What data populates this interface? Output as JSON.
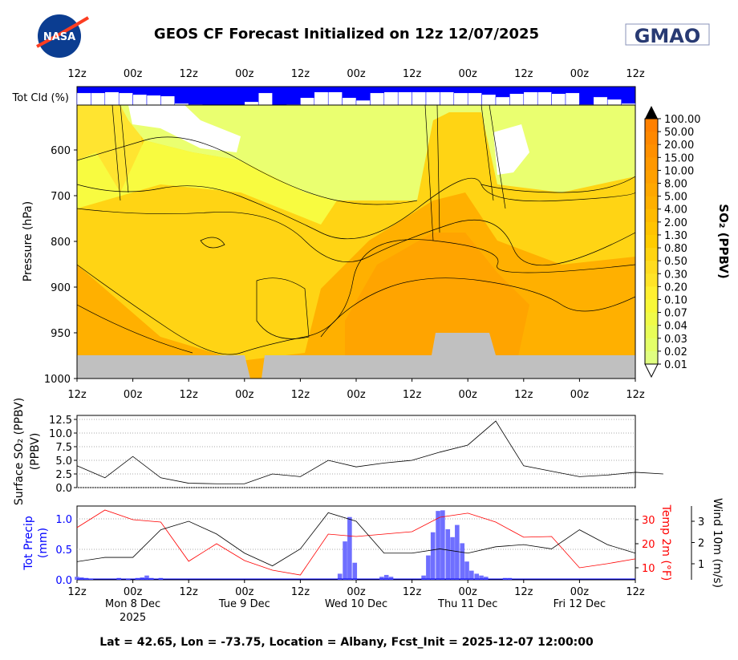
{
  "title": "GEOS CF Forecast Initialized on 12z 12/07/2025",
  "logos": {
    "left": "NASA",
    "right": "GMAO"
  },
  "footer": "Lat = 42.65, Lon = -73.75, Location = Albany, Fcst_Init = 2025-12-07 12:00:00",
  "colors": {
    "precip": "#0000ff",
    "temp": "#ff0000",
    "wind": "#000000",
    "cloud_bg": "#0000ff",
    "terrain": "#c0c0c0"
  },
  "time_ticks": [
    "12z",
    "00z",
    "12z",
    "00z",
    "12z",
    "00z",
    "12z",
    "00z",
    "12z",
    "00z",
    "12z"
  ],
  "date_labels": [
    {
      "hour": 12,
      "text": "Mon 8 Dec"
    },
    {
      "hour": 36,
      "text": "Tue 9 Dec"
    },
    {
      "hour": 60,
      "text": "Wed 10 Dec"
    },
    {
      "hour": 84,
      "text": "Thu 11 Dec"
    },
    {
      "hour": 108,
      "text": "Fri 12 Dec"
    }
  ],
  "year_label": "2025",
  "chart_data": [
    {
      "type": "bar",
      "ylabel": "Tot Cld (%)",
      "x_hours_step": 3,
      "values": [
        34,
        34,
        29,
        34,
        43,
        47,
        51,
        91,
        96,
        100,
        100,
        100,
        82,
        34,
        100,
        96,
        60,
        29,
        29,
        60,
        74,
        34,
        29,
        29,
        29,
        29,
        29,
        34,
        34,
        43,
        56,
        38,
        29,
        29,
        38,
        34,
        96,
        56,
        69,
        91
      ]
    },
    {
      "type": "heatmap",
      "ylabel": "Pressure (hPa)",
      "yticks": [
        "600",
        "700",
        "800",
        "900",
        "950",
        "1000"
      ],
      "colorbar_label": "SO₂ (PPBV)",
      "colorbar_levels": [
        "100.00",
        "50.00",
        "20.00",
        "15.00",
        "10.00",
        "8.00",
        "5.00",
        "4.00",
        "2.00",
        "1.30",
        "0.80",
        "0.50",
        "0.30",
        "0.20",
        "0.10",
        "0.07",
        "0.04",
        "0.03",
        "0.02",
        "0.01"
      ],
      "colorbar_colors": [
        "#ff8000",
        "#ff8800",
        "#ff9000",
        "#ff9800",
        "#ffa000",
        "#ffa800",
        "#ffb000",
        "#ffbb00",
        "#ffc400",
        "#ffcc00",
        "#ffd410",
        "#ffdc20",
        "#ffe428",
        "#fff030",
        "#f8f838",
        "#f0fb48",
        "#e8fd58",
        "#e4ff68",
        "#e0ff80"
      ]
    },
    {
      "type": "line",
      "ylabel": "Surface SO₂ (PPBV)",
      "yticks": [
        "0.0",
        "2.5",
        "5.0",
        "7.5",
        "10.0",
        "12.5"
      ],
      "ylim": [
        0,
        13.5
      ],
      "x_hours_step": 6,
      "values": [
        4.0,
        1.8,
        5.7,
        1.8,
        0.8,
        0.7,
        0.7,
        2.5,
        2.0,
        5.0,
        3.8,
        4.5,
        5.0,
        6.5,
        7.8,
        12.2,
        4.0,
        3.0,
        2.0,
        2.3,
        2.8,
        2.5
      ]
    },
    {
      "type": "bar+line",
      "precip": {
        "ylabel": "Tot Precip (mm)",
        "yticks": [
          "0.0",
          "0.5",
          "1.0"
        ],
        "ylim": [
          0,
          1.2
        ],
        "bars": [
          [
            0,
            0.05
          ],
          [
            1,
            0.04
          ],
          [
            2,
            0.03
          ],
          [
            3,
            0.02
          ],
          [
            9,
            0.03
          ],
          [
            11,
            0.02
          ],
          [
            13,
            0.03
          ],
          [
            14,
            0.04
          ],
          [
            15,
            0.07
          ],
          [
            16,
            0.03
          ],
          [
            18,
            0.03
          ],
          [
            56.5,
            0.1
          ],
          [
            57.6,
            0.63
          ],
          [
            58.6,
            1.03
          ],
          [
            59.7,
            0.28
          ],
          [
            65.5,
            0.05
          ],
          [
            66.5,
            0.08
          ],
          [
            67.5,
            0.05
          ],
          [
            74.5,
            0.07
          ],
          [
            75.5,
            0.4
          ],
          [
            76.5,
            0.78
          ],
          [
            77.6,
            1.13
          ],
          [
            78.6,
            1.14
          ],
          [
            79.7,
            0.83
          ],
          [
            80.7,
            0.7
          ],
          [
            81.7,
            0.9
          ],
          [
            82.8,
            0.6
          ],
          [
            83.8,
            0.3
          ],
          [
            84.8,
            0.15
          ],
          [
            85.9,
            0.1
          ],
          [
            86.9,
            0.07
          ],
          [
            87.9,
            0.05
          ],
          [
            92,
            0.03
          ],
          [
            93,
            0.03
          ]
        ]
      },
      "temp": {
        "ylabel": "Temp 2m (°F)",
        "yticks": [
          "10",
          "20",
          "30"
        ],
        "x_hours_step": 6,
        "values": [
          26.7,
          34,
          30,
          29,
          12.7,
          20,
          13,
          9,
          7,
          24,
          23,
          24,
          25,
          31,
          32.7,
          29,
          22.7,
          23,
          10,
          11.7,
          13.7
        ]
      },
      "wind": {
        "ylabel": "Wind 10m (m/s)",
        "yticks": [
          "1",
          "2",
          "3"
        ],
        "x_hours_step": 6,
        "values": [
          1.1,
          1.3,
          1.3,
          2.6,
          3.0,
          2.4,
          1.5,
          0.9,
          1.7,
          3.4,
          3.0,
          1.5,
          1.5,
          1.7,
          1.5,
          1.8,
          1.9,
          1.7,
          2.6,
          1.9,
          1.5
        ]
      }
    }
  ]
}
